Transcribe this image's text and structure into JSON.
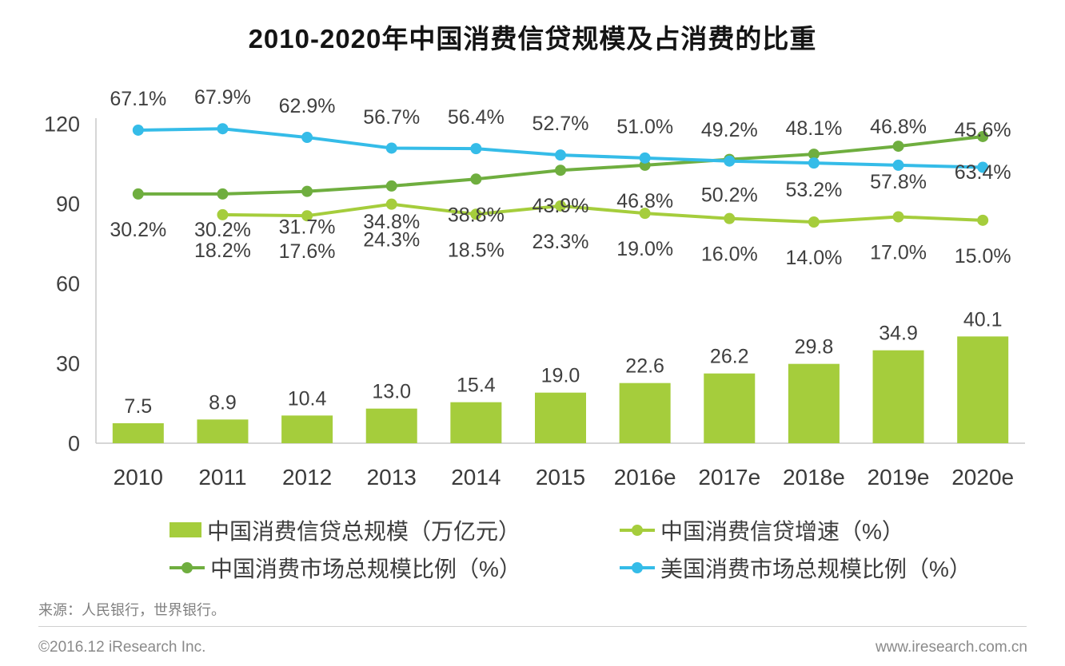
{
  "chart_data": {
    "type": "combo",
    "title": "2010-2020年中国消费信贷规模及占消费的比重",
    "categories": [
      "2010",
      "2011",
      "2012",
      "2013",
      "2014",
      "2015",
      "2016e",
      "2017e",
      "2018e",
      "2019e",
      "2020e"
    ],
    "y_axis": {
      "ticks": [
        0,
        30,
        60,
        90,
        120
      ],
      "range": [
        0,
        120
      ],
      "grid": false
    },
    "legend_position": "bottom",
    "series": [
      {
        "name": "中国消费信贷总规模（万亿元）",
        "type": "bar",
        "color": "#a5cd3c",
        "unit": "万亿元",
        "values": [
          7.5,
          8.9,
          10.4,
          13.0,
          15.4,
          19.0,
          22.6,
          26.2,
          29.8,
          34.9,
          40.1
        ]
      },
      {
        "name": "中国消费信贷增速（%）",
        "type": "line",
        "color": "#a5cd3c",
        "unit": "%",
        "values": [
          null,
          18.2,
          17.6,
          24.3,
          18.5,
          23.3,
          19.0,
          16.0,
          14.0,
          17.0,
          15.0
        ]
      },
      {
        "name": "中国消费市场总规模比例（%）",
        "type": "line",
        "color": "#6fae3f",
        "unit": "%",
        "values": [
          30.2,
          30.2,
          31.7,
          34.8,
          38.8,
          43.9,
          46.8,
          50.2,
          53.2,
          57.8,
          63.4
        ]
      },
      {
        "name": "美国消费市场总规模比例（%）",
        "type": "line",
        "color": "#35bce8",
        "unit": "%",
        "values": [
          67.1,
          67.9,
          62.9,
          56.7,
          56.4,
          52.7,
          51.0,
          49.2,
          48.1,
          46.8,
          45.6
        ]
      }
    ]
  },
  "footer": {
    "source": "来源：人民银行，世界银行。",
    "copyright": "©2016.12 iResearch Inc.",
    "website": "www.iresearch.com.cn"
  }
}
